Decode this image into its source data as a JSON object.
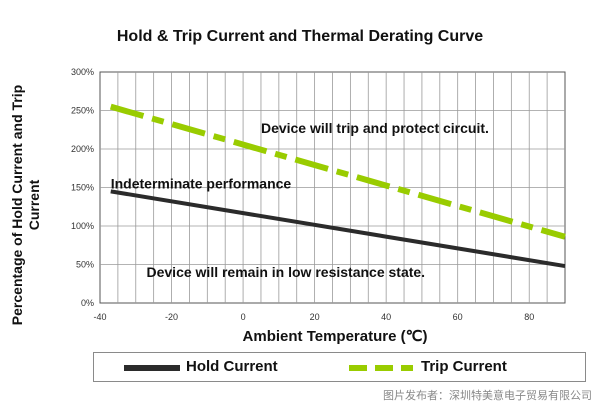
{
  "chart_data": {
    "type": "line",
    "title": "Hold & Trip Current and Thermal Derating Curve",
    "xlabel": "Ambient Temperature (℃)",
    "ylabel": "Percentage of Hold Current and Trip Current",
    "xlim": [
      -40,
      90
    ],
    "ylim": [
      0,
      300
    ],
    "x_ticks": [
      "-40",
      "-20",
      "0",
      "20",
      "40",
      "60",
      "80"
    ],
    "x_tick_values": [
      -40,
      -20,
      0,
      20,
      40,
      60,
      80
    ],
    "y_ticks": [
      "0%",
      "50%",
      "100%",
      "150%",
      "200%",
      "250%",
      "300%"
    ],
    "y_tick_values": [
      0,
      50,
      100,
      150,
      200,
      250,
      300
    ],
    "grid": true,
    "legend_position": "bottom",
    "series": [
      {
        "name": "Hold Current",
        "style": "solid",
        "color": "#2b2b2b",
        "x": [
          -37,
          90
        ],
        "y": [
          145,
          48
        ]
      },
      {
        "name": "Trip Current",
        "style": "dashed",
        "color": "#99cc00",
        "x": [
          -37,
          90
        ],
        "y": [
          255,
          86
        ]
      }
    ],
    "annotations": [
      {
        "text": "Device will trip and protect circuit.",
        "x": 5,
        "y": 227
      },
      {
        "text": "Indeterminate performance",
        "x": -37,
        "y": 155
      },
      {
        "text": "Device will remain in low resistance state.",
        "x": -27,
        "y": 40
      }
    ]
  },
  "watermark": "图片发布者：深圳特美意电子贸易有限公司"
}
